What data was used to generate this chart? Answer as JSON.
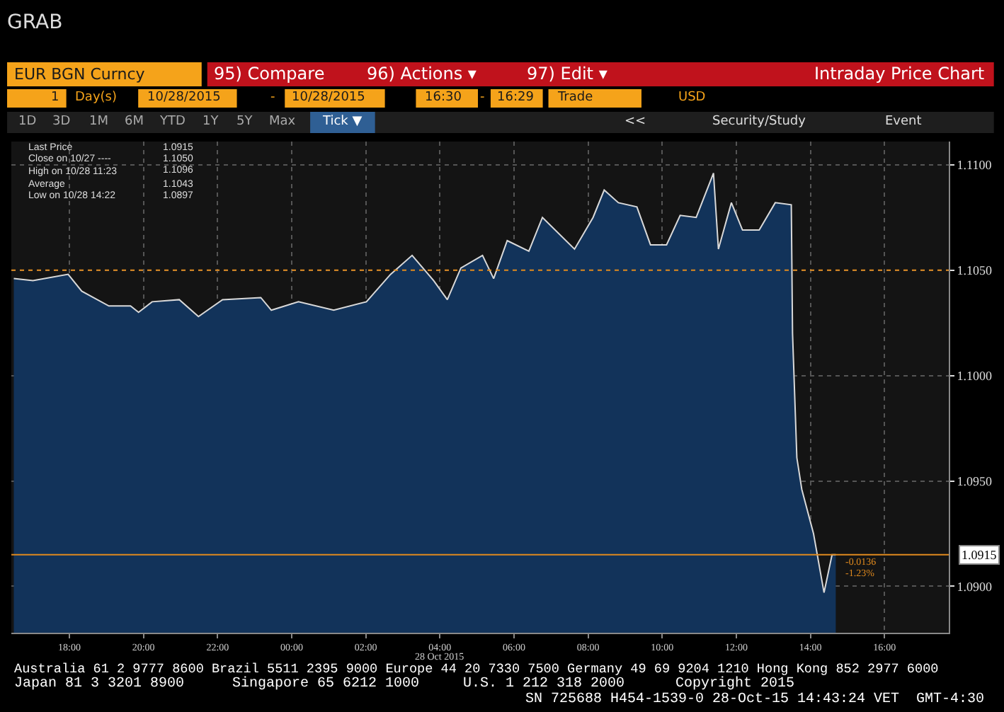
{
  "chart_data": {
    "type": "area",
    "title": "GRAB",
    "xlabel": "28 Oct 2015",
    "x": [
      "2015-10-27T16:30",
      "2015-10-27T17:01",
      "2015-10-27T17:58",
      "2015-10-27T18:20",
      "2015-10-27T19:04",
      "2015-10-27T19:39",
      "2015-10-27T19:52",
      "2015-10-27T20:14",
      "2015-10-27T20:58",
      "2015-10-27T21:29",
      "2015-10-27T22:08",
      "2015-10-27T23:10",
      "2015-10-27T23:27",
      "2015-10-28T00:11",
      "2015-10-28T01:08",
      "2015-10-28T02:01",
      "2015-10-28T02:40",
      "2015-10-28T03:15",
      "2015-10-28T03:50",
      "2015-10-28T04:12",
      "2015-10-28T04:34",
      "2015-10-28T05:09",
      "2015-10-28T05:27",
      "2015-10-28T05:49",
      "2015-10-28T06:24",
      "2015-10-28T06:46",
      "2015-10-28T07:38",
      "2015-10-28T08:08",
      "2015-10-28T08:26",
      "2015-10-28T08:49",
      "2015-10-28T09:19",
      "2015-10-28T09:41",
      "2015-10-28T10:07",
      "2015-10-28T10:29",
      "2015-10-28T10:55",
      "2015-10-28T11:23",
      "2015-10-28T11:31",
      "2015-10-28T11:52",
      "2015-10-28T12:10",
      "2015-10-28T12:37",
      "2015-10-28T13:03",
      "2015-10-28T13:29",
      "2015-10-28T13:31",
      "2015-10-28T13:38",
      "2015-10-28T13:46",
      "2015-10-28T14:05",
      "2015-10-28T14:22",
      "2015-10-28T14:35",
      "2015-10-28T14:41"
    ],
    "series": [
      {
        "color": "#d9d9d9",
        "values": [
          1.1046,
          1.1045,
          1.1048,
          1.104,
          1.1033,
          1.1033,
          1.103,
          1.1035,
          1.1036,
          1.1028,
          1.1036,
          1.1037,
          1.1031,
          1.1035,
          1.1031,
          1.1035,
          1.1048,
          1.1057,
          1.1045,
          1.1036,
          1.1051,
          1.1057,
          1.1046,
          1.1064,
          1.1059,
          1.1075,
          1.106,
          1.1075,
          1.1088,
          1.1082,
          1.108,
          1.1062,
          1.1062,
          1.1076,
          1.1075,
          1.1096,
          1.106,
          1.1082,
          1.1069,
          1.1069,
          1.1082,
          1.1081,
          1.102,
          1.0961,
          1.0946,
          1.0925,
          1.0897,
          1.0915,
          1.0915
        ]
      }
    ],
    "xlim": [
      "2015-10-27T16:26",
      "2015-10-28T17:44"
    ],
    "ylim": [
      1.0878,
      1.1111
    ],
    "xticks": [
      {
        "value": "2015-10-27T18:00",
        "label": "18:00"
      },
      {
        "value": "2015-10-27T20:00",
        "label": "20:00"
      },
      {
        "value": "2015-10-27T22:00",
        "label": "22:00"
      },
      {
        "value": "2015-10-28T00:00",
        "label": "00:00"
      },
      {
        "value": "2015-10-28T02:00",
        "label": "02:00"
      },
      {
        "value": "2015-10-28T04:00",
        "label": "04:00"
      },
      {
        "value": "2015-10-28T06:00",
        "label": "06:00"
      },
      {
        "value": "2015-10-28T08:00",
        "label": "08:00"
      },
      {
        "value": "2015-10-28T10:00",
        "label": "10:00"
      },
      {
        "value": "2015-10-28T12:00",
        "label": "12:00"
      },
      {
        "value": "2015-10-28T14:00",
        "label": "14:00"
      },
      {
        "value": "2015-10-28T16:00",
        "label": "16:00"
      }
    ],
    "yticks": [
      {
        "value": 1.09,
        "label": "1.0900"
      },
      {
        "value": 1.095,
        "label": "1.0950"
      },
      {
        "value": 1.1,
        "label": "1.1000"
      },
      {
        "value": 1.105,
        "label": "1.1050"
      },
      {
        "value": 1.11,
        "label": "1.1100"
      }
    ],
    "grid": true,
    "marker": "none",
    "line_style": "solid",
    "ref_lines": [
      {
        "axis": "y",
        "value": 1.105,
        "color": "#e08a1e",
        "line_style": "dotted"
      },
      {
        "axis": "y",
        "value": 1.0915,
        "label": "1.0915",
        "color": "#e08a1e",
        "line_style": "solid"
      }
    ],
    "annotations": [
      "EUR BGN Curncy",
      "95) Compare",
      "96) Actions ▾",
      "97) Edit ▾",
      "Intraday Price Chart",
      "1",
      "Day(s)",
      "10/28/2015",
      "-",
      "10/28/2015",
      "16:30",
      "-",
      "16:29",
      "Trade",
      "USD",
      "1D",
      "3D",
      "1M",
      "6M",
      "YTD",
      "1Y",
      "5Y",
      "Max",
      "Tick ▼",
      "<<",
      "Security/Study",
      "Event",
      "Last Price",
      "1.0915",
      "Close on 10/27 ----",
      "1.1050",
      "High on 10/28 11:23",
      "1.1096",
      "Average",
      "1.1043",
      "Low on 10/28 14:22",
      "1.0897",
      "Australia 61 2 9777 8600 Brazil 5511 2395 9000 Europe 44 20 7330 7500 Germany 49 69 9204 1210 Hong Kong 852 2977 6000",
      "Japan 81 3 3201 8900",
      "Singapore 65 6212 1000",
      "U.S. 1 212 318 2000",
      "Copyright 2015",
      "SN 725688 H454-1539-0 28-Oct-15 14:43:24 VET  GMT-4:30",
      "-0.0136",
      "-1.23%"
    ]
  }
}
